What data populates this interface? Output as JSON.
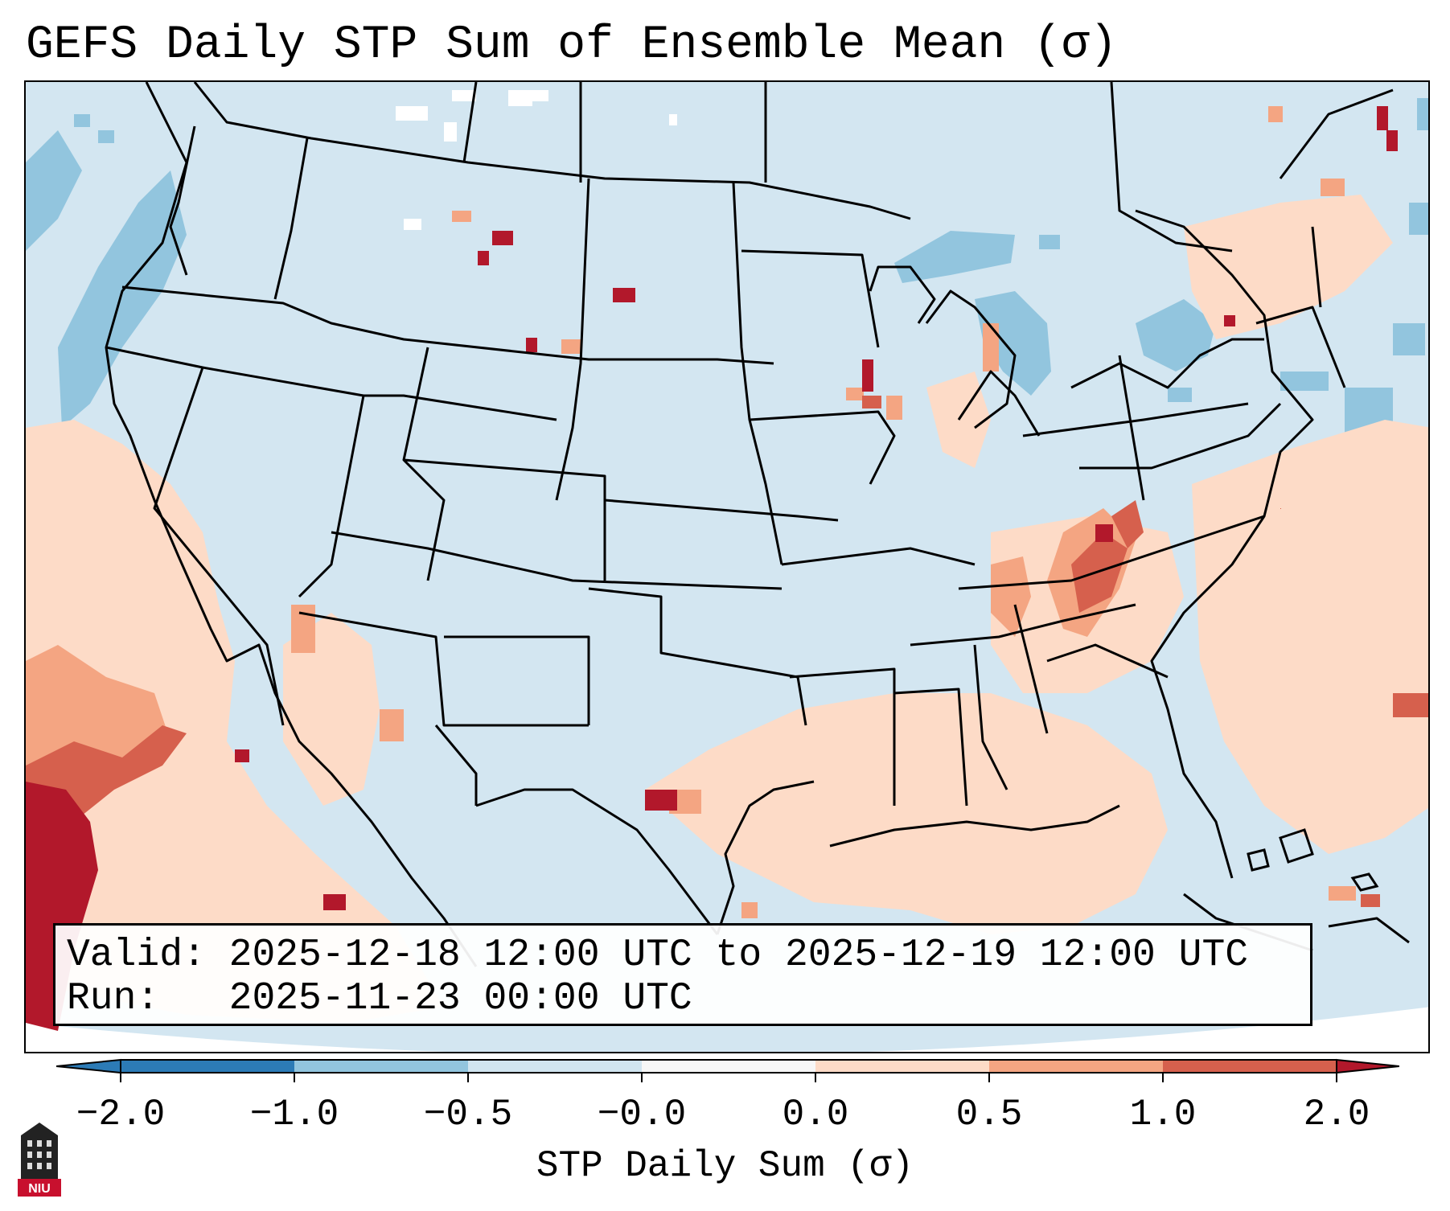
{
  "title": "GEFS Daily STP Sum of Ensemble Mean (σ)",
  "info": {
    "valid_label": "Valid:",
    "valid_value": "2025-12-18 12:00 UTC to 2025-12-19 12:00 UTC",
    "run_label": "Run:",
    "run_value": "2025-11-23 00:00 UTC"
  },
  "colorbar": {
    "label": "STP Daily Sum (σ)",
    "ticks": [
      "−2.0",
      "−1.0",
      "−0.5",
      "−0.0",
      "0.0",
      "0.5",
      "1.0",
      "2.0"
    ],
    "colors": [
      "#2c7bb6",
      "#92c5de",
      "#d1e5f0",
      "#f7f7f7",
      "#fddbc7",
      "#f4a582",
      "#d6604d",
      "#b2182b"
    ]
  },
  "logo": {
    "text": "NIU",
    "icon": "niu-tower-icon"
  }
}
